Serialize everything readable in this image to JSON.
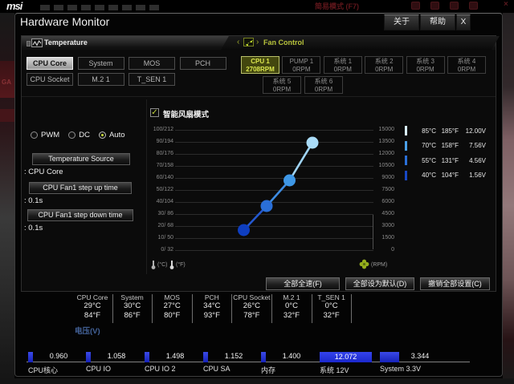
{
  "background": {
    "msi_logo": "msi",
    "easy_mode_label": "简易模式 (F7)",
    "fragment_ga": "GA",
    "fragment_lz": "lz"
  },
  "dialog": {
    "title": "Hardware Monitor",
    "about_label": "关于",
    "help_label": "帮助",
    "close_label": "X"
  },
  "sections": {
    "temperature": {
      "label": "Temperature"
    },
    "fan_control": {
      "label": "Fan Control",
      "prev": "‹",
      "next": "›"
    }
  },
  "temp_tabs": {
    "row1": [
      {
        "label": "CPU Core",
        "selected": true
      },
      {
        "label": "System",
        "selected": false
      },
      {
        "label": "MOS",
        "selected": false
      },
      {
        "label": "PCH",
        "selected": false
      }
    ],
    "row2": [
      {
        "label": "CPU Socket",
        "selected": false
      },
      {
        "label": "M.2 1",
        "selected": false
      },
      {
        "label": "T_SEN 1",
        "selected": false
      }
    ]
  },
  "fan_tabs": {
    "row1": [
      {
        "label": "CPU 1",
        "rpm": "2708RPM",
        "selected": true
      },
      {
        "label": "PUMP 1",
        "rpm": "0RPM",
        "selected": false
      },
      {
        "label": "系统 1",
        "rpm": "0RPM",
        "selected": false
      },
      {
        "label": "系统 2",
        "rpm": "0RPM",
        "selected": false
      },
      {
        "label": "系统 3",
        "rpm": "0RPM",
        "selected": false
      },
      {
        "label": "系统 4",
        "rpm": "0RPM",
        "selected": false
      }
    ],
    "row2": [
      {
        "label": "系统 5",
        "rpm": "0RPM",
        "selected": false
      },
      {
        "label": "系统 6",
        "rpm": "0RPM",
        "selected": false
      }
    ]
  },
  "fan_settings": {
    "modes": [
      {
        "label": "PWM",
        "selected": false
      },
      {
        "label": "DC",
        "selected": false
      },
      {
        "label": "Auto",
        "selected": true
      }
    ],
    "temperature_source_label": "Temperature Source",
    "temperature_source_value": ": CPU Core",
    "step_up_label": "CPU Fan1 step up time",
    "step_up_value": ": 0.1s",
    "step_down_label": "CPU Fan1 step down time",
    "step_down_value": ": 0.1s"
  },
  "smart_fan": {
    "checkbox_label": "智能风扇模式",
    "checked": true,
    "check_glyph": "✓"
  },
  "chart_data": {
    "type": "line",
    "title": "智能风扇模式",
    "x": [
      40,
      55,
      70,
      85
    ],
    "series": [
      {
        "name": "smart-fan-curve",
        "values": [
          2500,
          5500,
          8700,
          13400
        ]
      }
    ],
    "point_colors": [
      "#0e3ec0",
      "#2a6fd8",
      "#3e97e6",
      "#aadcf8"
    ],
    "segment_colors": [
      "#2458cf",
      "#3d8ce2",
      "#9fd4f5"
    ],
    "left_axis_ticks": [
      "100/212",
      "90/194",
      "80/176",
      "70/158",
      "60/140",
      "50/122",
      "40/104",
      "30/ 86",
      "20/ 68",
      "10/ 50",
      "0/ 32"
    ],
    "right_axis_ticks": [
      "15000",
      "13500",
      "12000",
      "10500",
      "9000",
      "7500",
      "6000",
      "4500",
      "3000",
      "1500",
      "0"
    ],
    "axis_unit_c": "(°C)",
    "axis_unit_f": "(°F)",
    "axis_unit_rpm": "(RPM)",
    "x_axis_range": [
      -5,
      125
    ],
    "ylim_right_rpm": [
      0,
      15000
    ],
    "ylim_left_temp": [
      0,
      100
    ],
    "grid": true,
    "legend_position": "right",
    "legend": [
      {
        "celsius": "85°C",
        "fahrenheit": "185°F",
        "voltage": "12.00V",
        "color": "#d8edfc"
      },
      {
        "celsius": "70°C",
        "fahrenheit": "158°F",
        "voltage": "7.56V",
        "color": "#4aa0e8"
      },
      {
        "celsius": "55°C",
        "fahrenheit": "131°F",
        "voltage": "4.56V",
        "color": "#2a6fd8"
      },
      {
        "celsius": "40°C",
        "fahrenheit": "104°F",
        "voltage": "1.56V",
        "color": "#1747c4"
      }
    ]
  },
  "action_buttons": [
    {
      "label": "全部全速(F)"
    },
    {
      "label": "全部设为默认(D)"
    },
    {
      "label": "撤销全部设置(C)"
    }
  ],
  "temp_readouts": [
    {
      "label": "CPU Core",
      "celsius": "29°C",
      "fahrenheit": "84°F"
    },
    {
      "label": "System",
      "celsius": "30°C",
      "fahrenheit": "86°F"
    },
    {
      "label": "MOS",
      "celsius": "27°C",
      "fahrenheit": "80°F"
    },
    {
      "label": "PCH",
      "celsius": "34°C",
      "fahrenheit": "93°F"
    },
    {
      "label": "CPU Socket",
      "celsius": "26°C",
      "fahrenheit": "78°F"
    },
    {
      "label": "M.2 1",
      "celsius": "0°C",
      "fahrenheit": "32°F"
    },
    {
      "label": "T_SEN 1",
      "celsius": "0°C",
      "fahrenheit": "32°F"
    }
  ],
  "voltage": {
    "section_label": "电压(V)",
    "items": [
      {
        "label": "CPU核心",
        "value": "0.960",
        "bar": "small"
      },
      {
        "label": "CPU IO",
        "value": "1.058",
        "bar": "small"
      },
      {
        "label": "CPU IO 2",
        "value": "1.498",
        "bar": "small"
      },
      {
        "label": "CPU SA",
        "value": "1.152",
        "bar": "small"
      },
      {
        "label": "内存",
        "value": "1.400",
        "bar": "small"
      },
      {
        "label": "系统 12V",
        "value": "12.072",
        "bar": "wide"
      },
      {
        "label": "System 3.3V",
        "value": "3.344",
        "bar": "medium"
      }
    ]
  }
}
